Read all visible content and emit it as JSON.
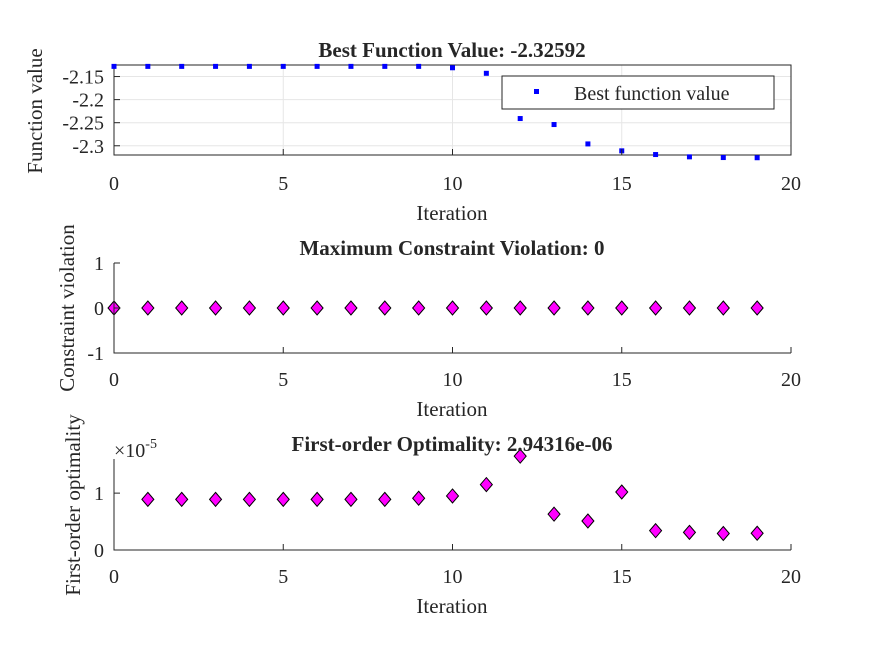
{
  "chart_data": [
    {
      "type": "scatter",
      "title": "Best Function Value: -2.32592",
      "xlabel": "Iteration",
      "ylabel": "Function value",
      "xlim": [
        0,
        20
      ],
      "ylim": [
        -2.32,
        -2.125
      ],
      "xticks": [
        "0",
        "5",
        "10",
        "15",
        "20"
      ],
      "yticks": [
        {
          "value": -2.15,
          "label": "-2.15"
        },
        {
          "value": -2.2,
          "label": "-2.2"
        },
        {
          "value": -2.25,
          "label": "-2.25"
        },
        {
          "value": -2.3,
          "label": "-2.3"
        }
      ],
      "grid": true,
      "legend": {
        "position": "top-right",
        "entries": [
          "Best function value"
        ]
      },
      "series": [
        {
          "name": "Best function value",
          "marker": "point",
          "color": "#0000ff",
          "x": [
            0,
            1,
            2,
            3,
            4,
            5,
            6,
            7,
            8,
            9,
            10,
            11,
            12,
            13,
            14,
            15,
            16,
            17,
            18,
            19
          ],
          "values": [
            -2.128,
            -2.128,
            -2.128,
            -2.128,
            -2.128,
            -2.128,
            -2.128,
            -2.128,
            -2.128,
            -2.128,
            -2.131,
            -2.143,
            -2.241,
            -2.254,
            -2.296,
            -2.311,
            -2.319,
            -2.324,
            -2.3255,
            -2.32592
          ]
        }
      ]
    },
    {
      "type": "scatter",
      "title": "Maximum Constraint Violation: 0",
      "xlabel": "Iteration",
      "ylabel": "Constraint violation",
      "xlim": [
        0,
        20
      ],
      "ylim": [
        -1,
        1
      ],
      "xticks": [
        "0",
        "5",
        "10",
        "15",
        "20"
      ],
      "yticks": [
        {
          "value": 1,
          "label": "1"
        },
        {
          "value": 0,
          "label": "0"
        },
        {
          "value": -1,
          "label": "-1"
        }
      ],
      "grid": false,
      "series": [
        {
          "marker": "diamond",
          "color": "#ff00ff",
          "x": [
            0,
            1,
            2,
            3,
            4,
            5,
            6,
            7,
            8,
            9,
            10,
            11,
            12,
            13,
            14,
            15,
            16,
            17,
            18,
            19
          ],
          "values": [
            0,
            0,
            0,
            0,
            0,
            0,
            0,
            0,
            0,
            0,
            0,
            0,
            0,
            0,
            0,
            0,
            0,
            0,
            0,
            0
          ]
        }
      ]
    },
    {
      "type": "scatter",
      "title": "First-order Optimality: 2.94316e-06",
      "xlabel": "Iteration",
      "ylabel": "First-order optimality",
      "exponent_label": "×10",
      "exponent_power": "-5",
      "xlim": [
        0,
        20
      ],
      "ylim": [
        0,
        1.6
      ],
      "xticks": [
        "0",
        "5",
        "10",
        "15",
        "20"
      ],
      "yticks": [
        {
          "value": 1,
          "label": "1"
        },
        {
          "value": 0,
          "label": "0"
        }
      ],
      "grid": false,
      "series": [
        {
          "marker": "diamond",
          "color": "#ff00ff",
          "x": [
            1,
            2,
            3,
            4,
            5,
            6,
            7,
            8,
            9,
            10,
            11,
            12,
            13,
            14,
            15,
            16,
            17,
            18,
            19
          ],
          "values": [
            0.89,
            0.89,
            0.89,
            0.89,
            0.89,
            0.89,
            0.89,
            0.89,
            0.91,
            0.95,
            1.15,
            1.65,
            0.63,
            0.51,
            1.02,
            0.34,
            0.31,
            0.29,
            0.294316
          ]
        }
      ]
    }
  ]
}
